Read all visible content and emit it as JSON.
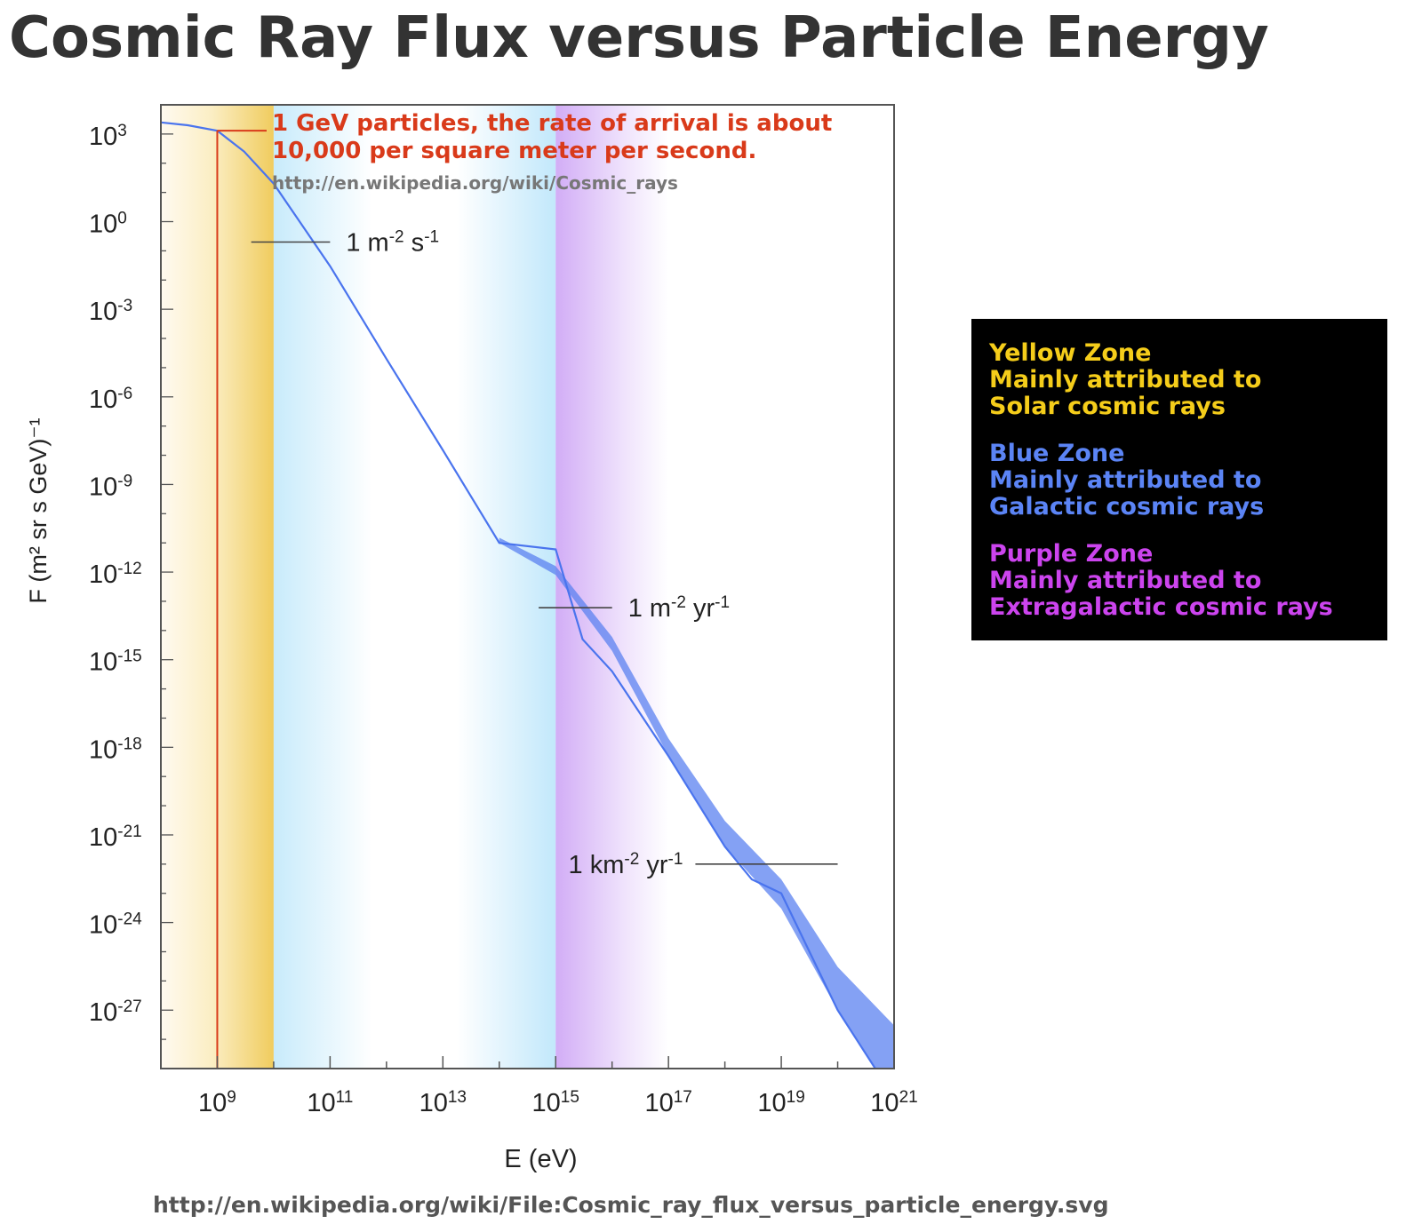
{
  "title": "Cosmic Ray Flux versus Particle Energy",
  "source_url": "http://en.wikipedia.org/wiki/File:Cosmic_ray_flux_versus_particle_energy.svg",
  "colors": {
    "title": "#333333",
    "curve": "#4a74ee",
    "band": "#5b82f0",
    "annotation_red": "#d93a1a",
    "yellow_zone": "#f2d06e",
    "blue_zone": "#c9ecfb",
    "purple_zone": "#d6b5f7",
    "legend_yellow": "#f5cd1a",
    "legend_blue": "#5b84f5",
    "legend_purple": "#cc44ee"
  },
  "annotation": {
    "line1": "1 GeV particles, the rate of arrival is about",
    "line2": "10,000 per square meter per second.",
    "source": "http://en.wikipedia.org/wiki/Cosmic_rays"
  },
  "legend": {
    "yellow": {
      "name": "Yellow Zone",
      "line2": "Mainly attributed to",
      "line3": "Solar cosmic rays"
    },
    "blue": {
      "name": "Blue Zone",
      "line2": "Mainly attributed to",
      "line3": "Galactic cosmic rays"
    },
    "purple": {
      "name": "Purple Zone",
      "line2": "Mainly attributed to",
      "line3": "Extragalactic cosmic rays"
    }
  },
  "chart_data": {
    "type": "line",
    "title": "Cosmic Ray Flux versus Particle Energy",
    "xlabel": "E (eV)",
    "ylabel": "F (m² sr s GeV)⁻¹",
    "x_scale": "log",
    "y_scale": "log",
    "xlim": [
      100000000.0,
      1e+21
    ],
    "ylim": [
      1e-29,
      10000.0
    ],
    "x_ticks": [
      {
        "base": "10",
        "exp": "9",
        "value": 1000000000.0
      },
      {
        "base": "10",
        "exp": "11",
        "value": 100000000000.0
      },
      {
        "base": "10",
        "exp": "13",
        "value": 10000000000000.0
      },
      {
        "base": "10",
        "exp": "15",
        "value": 1000000000000000.0
      },
      {
        "base": "10",
        "exp": "17",
        "value": 1e+17
      },
      {
        "base": "10",
        "exp": "19",
        "value": 1e+19
      },
      {
        "base": "10",
        "exp": "21",
        "value": 1e+21
      }
    ],
    "y_ticks": [
      {
        "base": "10",
        "exp": "3",
        "value": 1000.0
      },
      {
        "base": "10",
        "exp": "0",
        "value": 1.0
      },
      {
        "base": "10",
        "exp": "-3",
        "value": 0.001
      },
      {
        "base": "10",
        "exp": "-6",
        "value": 1e-06
      },
      {
        "base": "10",
        "exp": "-9",
        "value": 1e-09
      },
      {
        "base": "10",
        "exp": "-12",
        "value": 1e-12
      },
      {
        "base": "10",
        "exp": "-15",
        "value": 1e-15
      },
      {
        "base": "10",
        "exp": "-18",
        "value": 1e-18
      },
      {
        "base": "10",
        "exp": "-21",
        "value": 1e-21
      },
      {
        "base": "10",
        "exp": "-24",
        "value": 1e-24
      },
      {
        "base": "10",
        "exp": "-27",
        "value": 1e-27
      }
    ],
    "zones": [
      {
        "name": "Yellow Zone",
        "from": 100000000.0,
        "to": 10000000000.0
      },
      {
        "name": "Blue Zone",
        "from": 10000000000.0,
        "to": 1000000000000000.0
      },
      {
        "name": "Purple Zone",
        "from": 1000000000000000.0,
        "to": 1e+17
      }
    ],
    "flux_curve": {
      "x": [
        100000000.0,
        300000000.0,
        1000000000.0,
        3000000000.0,
        10000000000.0,
        100000000000.0,
        1000000000000.0,
        10000000000000.0,
        100000000000000.0,
        1000000000000000.0,
        3000000000000000.0,
        1e+16,
        1e+17,
        1e+18,
        3e+18,
        1e+19,
        1e+20,
        1e+21
      ],
      "y": [
        2500.0,
        2000.0,
        1300.0,
        250.0,
        20.0,
        0.03,
        2e-05,
        1.5e-08,
        1e-11,
        6e-12,
        5e-15,
        4e-16,
        5e-19,
        4e-22,
        3e-23,
        1e-23,
        1e-27,
        1e-30
      ]
    },
    "flux_band": {
      "x": [
        100000000000000.0,
        1000000000000000.0,
        1e+16,
        1e+17,
        1e+18,
        1e+19,
        1e+20,
        1e+21
      ],
      "y_low": [
        1e-11,
        8e-13,
        2e-15,
        5e-19,
        4e-22,
        3e-24,
        1e-27,
        1e-30
      ],
      "y_high": [
        1.5e-11,
        1.6e-12,
        6e-15,
        2e-18,
        3e-21,
        3e-23,
        3e-26,
        3e-28
      ]
    },
    "marker_1GeV": {
      "x": 1000000000.0,
      "y": 1300.0
    },
    "reference_lines": [
      {
        "label_main": "1 m",
        "exp1": "-2",
        "mid": " s",
        "exp2": "-1",
        "y": 0.2,
        "x_from": 4000000000.0,
        "x_to": 100000000000.0
      },
      {
        "label_main": "1 m",
        "exp1": "-2",
        "mid": " yr",
        "exp2": "-1",
        "y": 6e-14,
        "x_from": 500000000000000.0,
        "x_to": 1e+16
      },
      {
        "label_main": "1 km",
        "exp1": "-2",
        "mid": " yr",
        "exp2": "-1",
        "y": 1e-22,
        "x_from": 3e+17,
        "x_to": 1e+20
      }
    ]
  }
}
